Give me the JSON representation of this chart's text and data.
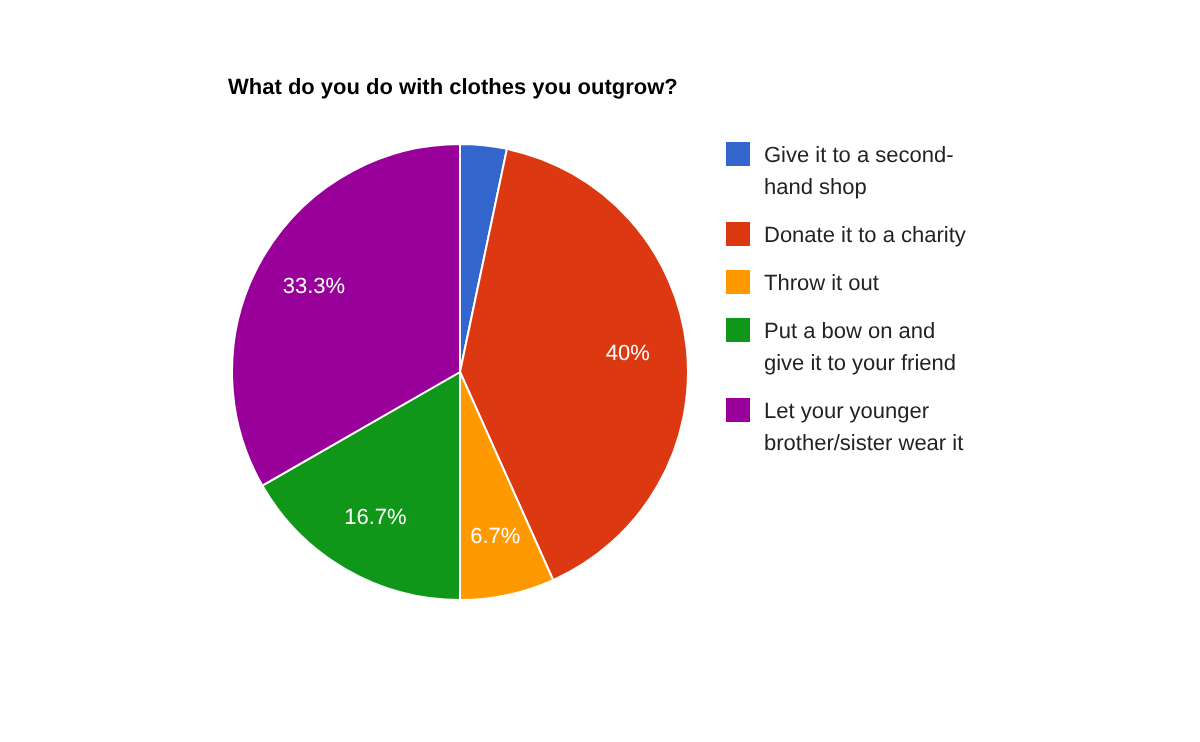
{
  "chart_data": {
    "type": "pie",
    "title": "What do you do with clothes you outgrow?",
    "categories": [
      "Give it to a second-hand shop",
      "Donate it to a charity",
      "Throw it out",
      "Put a bow on and give it to your friend",
      "Let your younger brother/sister wear it"
    ],
    "values": [
      3.3,
      40,
      6.7,
      16.7,
      33.3
    ],
    "colors": [
      "#3366cc",
      "#dc3912",
      "#ff9900",
      "#109618",
      "#990099"
    ],
    "value_labels": [
      null,
      "40%",
      "6.7%",
      "16.7%",
      "33.3%"
    ],
    "legend": "right"
  }
}
